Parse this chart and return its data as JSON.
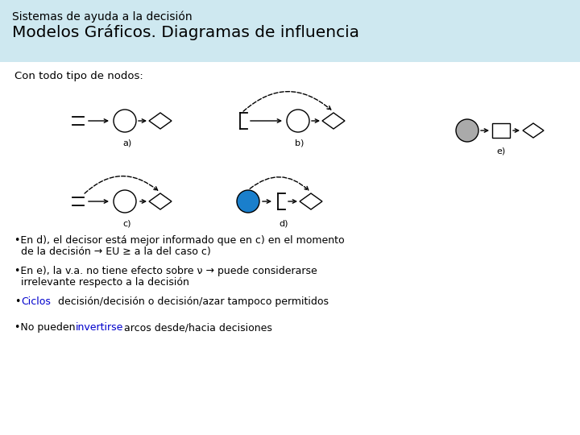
{
  "title_line1": "Sistemas de ayuda a la decisión",
  "title_line2": "Modelos Gráficos. Diagramas de influencia",
  "header_bg": "#cee8f0",
  "subtitle": "Con todo tipo de nodos:",
  "label_a": "a)",
  "label_b": "b)",
  "label_c": "c)",
  "label_d": "d)",
  "label_e": "e)",
  "blue_fill": "#1a7fcc",
  "gray_fill": "#aaaaaa",
  "white_fill": "white",
  "bg_color": "white"
}
